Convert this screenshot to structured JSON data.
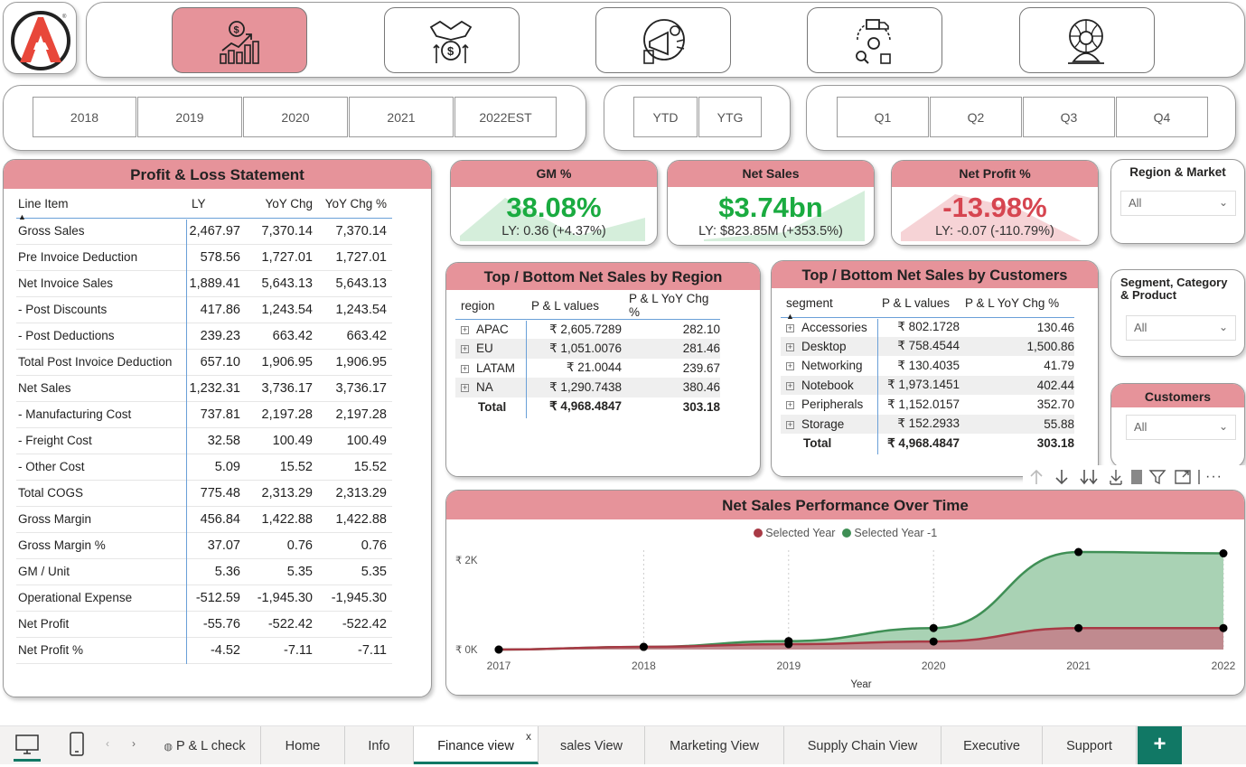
{
  "nav": {
    "buttons": [
      {
        "name": "finance-icon"
      },
      {
        "name": "sales-handshake-icon"
      },
      {
        "name": "marketing-icon"
      },
      {
        "name": "supply-chain-icon"
      },
      {
        "name": "executive-icon"
      }
    ]
  },
  "years": [
    "2018",
    "2019",
    "2020",
    "2021",
    "2022EST"
  ],
  "ytd": [
    "YTD",
    "YTG"
  ],
  "quarters": [
    "Q1",
    "Q2",
    "Q3",
    "Q4"
  ],
  "pl": {
    "title": "Profit & Loss Statement",
    "headers": [
      "Line Item",
      "LY",
      "YoY Chg",
      "YoY Chg %"
    ],
    "rows": [
      [
        "Gross Sales",
        "2,467.97",
        "7,370.14",
        "7,370.14"
      ],
      [
        "Pre Invoice Deduction",
        "578.56",
        "1,727.01",
        "1,727.01"
      ],
      [
        "Net Invoice Sales",
        "1,889.41",
        "5,643.13",
        "5,643.13"
      ],
      [
        "- Post Discounts",
        "417.86",
        "1,243.54",
        "1,243.54"
      ],
      [
        "- Post Deductions",
        "239.23",
        "663.42",
        "663.42"
      ],
      [
        "Total Post Invoice Deduction",
        "657.10",
        "1,906.95",
        "1,906.95"
      ],
      [
        "Net Sales",
        "1,232.31",
        "3,736.17",
        "3,736.17"
      ],
      [
        "- Manufacturing Cost",
        "737.81",
        "2,197.28",
        "2,197.28"
      ],
      [
        "- Freight Cost",
        "32.58",
        "100.49",
        "100.49"
      ],
      [
        "- Other Cost",
        "5.09",
        "15.52",
        "15.52"
      ],
      [
        "Total COGS",
        "775.48",
        "2,313.29",
        "2,313.29"
      ],
      [
        "Gross Margin",
        "456.84",
        "1,422.88",
        "1,422.88"
      ],
      [
        "Gross Margin %",
        "37.07",
        "0.76",
        "0.76"
      ],
      [
        "GM / Unit",
        "5.36",
        "5.35",
        "5.35"
      ],
      [
        "Operational Expense",
        "-512.59",
        "-1,945.30",
        "-1,945.30"
      ],
      [
        "Net Profit",
        "-55.76",
        "-522.42",
        "-522.42"
      ],
      [
        "Net Profit %",
        "-4.52",
        "-7.11",
        "-7.11"
      ]
    ]
  },
  "kpis": {
    "gm": {
      "title": "GM %",
      "value": "38.08%",
      "ly": "LY: 0.36 (+4.37%)",
      "color": "#1aab40"
    },
    "ns": {
      "title": "Net Sales",
      "value": "$3.74bn",
      "ly": "LY: $823.85M (+353.5%)",
      "color": "#1aab40"
    },
    "np": {
      "title": "Net Profit %",
      "value": "-13.98%",
      "ly": "LY: -0.07 (-110.79%)",
      "color": "#d64550"
    }
  },
  "filters": {
    "region": {
      "title": "Region & Market",
      "value": "All"
    },
    "segment": {
      "title": "Segment, Category & Product",
      "value": "All"
    },
    "customers": {
      "title": "Customers",
      "value": "All"
    }
  },
  "region_table": {
    "title": "Top / Bottom Net Sales by Region",
    "headers": [
      "region",
      "P & L values",
      "P & L YoY Chg %"
    ],
    "rows": [
      [
        "APAC",
        "₹ 2,605.7289",
        "282.10"
      ],
      [
        "EU",
        "₹ 1,051.0076",
        "281.46"
      ],
      [
        "LATAM",
        "₹ 21.0044",
        "239.67"
      ],
      [
        "NA",
        "₹ 1,290.7438",
        "380.46"
      ]
    ],
    "total": [
      "Total",
      "₹ 4,968.4847",
      "303.18"
    ]
  },
  "customer_table": {
    "title": "Top / Bottom Net Sales by Customers",
    "headers": [
      "segment",
      "P & L values",
      "P & L YoY Chg %"
    ],
    "rows": [
      [
        "Accessories",
        "₹ 802.1728",
        "130.46"
      ],
      [
        "Desktop",
        "₹ 758.4544",
        "1,500.86"
      ],
      [
        "Networking",
        "₹ 130.4035",
        "41.79"
      ],
      [
        "Notebook",
        "₹ 1,973.1451",
        "402.44"
      ],
      [
        "Peripherals",
        "₹ 1,152.0157",
        "352.70"
      ],
      [
        "Storage",
        "₹ 152.2933",
        "55.88"
      ]
    ],
    "total": [
      "Total",
      "₹ 4,968.4847",
      "303.18"
    ]
  },
  "chart_data": {
    "type": "area",
    "title": "Net Sales Performance Over Time",
    "xlabel": "Year",
    "ylabel": "",
    "x": [
      2017,
      2018,
      2019,
      2020,
      2021,
      2022
    ],
    "series": [
      {
        "name": "Selected Year",
        "values": [
          0,
          60,
          120,
          180,
          480,
          480
        ],
        "color": "#a83a45"
      },
      {
        "name": "Selected Year -1",
        "values": [
          0,
          60,
          190,
          480,
          2180,
          2150
        ],
        "color": "#3f8f55"
      }
    ],
    "ytick_labels": [
      "₹ 0K",
      "₹ 2K"
    ],
    "yticks": [
      0,
      2000
    ],
    "ylim": [
      0,
      2100
    ]
  },
  "visual_toolbar": [
    "arrow-up-icon",
    "arrow-down-icon",
    "double-arrow-down-icon",
    "expand-down-icon",
    "filter-icon",
    "focus-mode-icon",
    "more-options-icon"
  ],
  "tabs": [
    {
      "label": "P & L check",
      "active": false
    },
    {
      "label": "Home",
      "active": false
    },
    {
      "label": "Info",
      "active": false
    },
    {
      "label": "Finance view",
      "active": true
    },
    {
      "label": "sales View",
      "active": false
    },
    {
      "label": "Marketing View",
      "active": false
    },
    {
      "label": "Supply Chain View",
      "active": false
    },
    {
      "label": "Executive",
      "active": false
    },
    {
      "label": "Support",
      "active": false
    }
  ],
  "tab_close": "x",
  "add_tab": "+"
}
